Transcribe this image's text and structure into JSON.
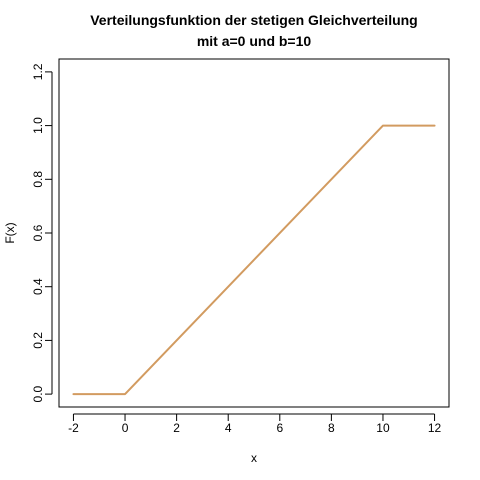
{
  "chart_data": {
    "type": "line",
    "title": "Verteilungsfunktion der stetigen Gleichverteilung",
    "subtitle": "mit a=0 und b=10",
    "xlabel": "x",
    "ylabel": "F(x)",
    "xlim": [
      -2.56,
      12.56
    ],
    "ylim": [
      -0.048,
      1.248
    ],
    "x_ticks": [
      -2,
      0,
      2,
      4,
      6,
      8,
      10,
      12
    ],
    "x_tick_labels": [
      "-2",
      "0",
      "2",
      "4",
      "6",
      "8",
      "10",
      "12"
    ],
    "y_ticks": [
      0.0,
      0.2,
      0.4,
      0.6,
      0.8,
      1.0,
      1.2
    ],
    "y_tick_labels": [
      "0.0",
      "0.2",
      "0.4",
      "0.6",
      "0.8",
      "1.0",
      "1.2"
    ],
    "grid": false,
    "legend": "none",
    "series": [
      {
        "color": "#D29B60",
        "points": [
          {
            "x": -2,
            "y": 0
          },
          {
            "x": 0,
            "y": 0
          },
          {
            "x": 10,
            "y": 1
          },
          {
            "x": 12,
            "y": 1
          }
        ]
      }
    ]
  }
}
